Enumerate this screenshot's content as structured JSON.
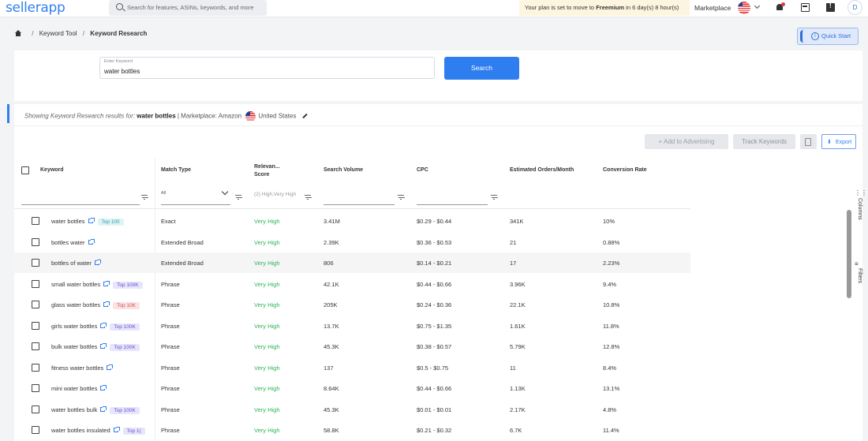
{
  "topbar": {
    "logo": "sellerapp",
    "search_placeholder": "Search for features, ASINs, keywords, and more",
    "plan_notice_prefix": "Your plan is set to move to ",
    "plan_notice_bold": "Freemium",
    "plan_notice_suffix": " in 6 day(s) 8 hour(s)",
    "marketplace_label": "Marketplace",
    "avatar_initial": "D"
  },
  "breadcrumb": {
    "items": [
      "Keyword Tool",
      "Keyword Research"
    ]
  },
  "quickstart_label": "Quick Start",
  "keyword_input": {
    "label": "Enter Keyword",
    "value": "water bottles"
  },
  "search_button": "Search",
  "results_header": {
    "prefix": "Showing Keyword Research results for:",
    "keyword": "water bottles",
    "marketplace": "| Marketplace: Amazon",
    "country": "United States"
  },
  "actions": {
    "add_to_advertising": "+ Add to Advertising",
    "track_keywords": "Track Keywords",
    "export": "Export"
  },
  "table": {
    "columns": [
      "Keyword",
      "Match Type",
      "Relevan... Score",
      "Search Volume",
      "CPC",
      "Estimated Orders/Month",
      "Conversion Rate"
    ],
    "filters": {
      "match_type_selected": "All",
      "relevance_placeholder": "(2) High,Very High"
    },
    "rows": [
      {
        "keyword": "water bottles",
        "tag": "Top 100",
        "tag_style": "teal",
        "match": "Exact",
        "relevance": "Very High",
        "volume": "3.41M",
        "cpc": "$0.29 - $0.44",
        "orders": "341K",
        "conversion": "10%"
      },
      {
        "keyword": "bottles water",
        "tag": "",
        "tag_style": "",
        "match": "Extended Broad",
        "relevance": "Very High",
        "volume": "2.39K",
        "cpc": "$0.36 - $0.53",
        "orders": "21",
        "conversion": "0.88%"
      },
      {
        "keyword": "bottles of water",
        "tag": "",
        "tag_style": "",
        "match": "Extended Broad",
        "relevance": "Very High",
        "volume": "806",
        "cpc": "$0.14 - $0.21",
        "orders": "17",
        "conversion": "2.23%"
      },
      {
        "keyword": "small water bottles",
        "tag": "Top 100K",
        "tag_style": "purple",
        "match": "Phrase",
        "relevance": "Very High",
        "volume": "42.1K",
        "cpc": "$0.44 - $0.66",
        "orders": "3.96K",
        "conversion": "9.4%"
      },
      {
        "keyword": "glass water bottles",
        "tag": "Top 10K",
        "tag_style": "red",
        "match": "Phrase",
        "relevance": "Very High",
        "volume": "205K",
        "cpc": "$0.24 - $0.36",
        "orders": "22.1K",
        "conversion": "10.8%"
      },
      {
        "keyword": "girls water bottles",
        "tag": "Top 100K",
        "tag_style": "purple",
        "match": "Phrase",
        "relevance": "Very High",
        "volume": "13.7K",
        "cpc": "$0.75 - $1.35",
        "orders": "1.61K",
        "conversion": "11.8%"
      },
      {
        "keyword": "bulk water bottles",
        "tag": "Top 100K",
        "tag_style": "purple",
        "match": "Phrase",
        "relevance": "Very High",
        "volume": "45.3K",
        "cpc": "$0.38 - $0.57",
        "orders": "5.79K",
        "conversion": "12.8%"
      },
      {
        "keyword": "fitness water bottles",
        "tag": "",
        "tag_style": "",
        "match": "Phrase",
        "relevance": "Very High",
        "volume": "137",
        "cpc": "$0.5 - $0.75",
        "orders": "11",
        "conversion": "8.4%"
      },
      {
        "keyword": "mini water bottles",
        "tag": "",
        "tag_style": "",
        "match": "Phrase",
        "relevance": "Very High",
        "volume": "8.64K",
        "cpc": "$0.44 - $0.66",
        "orders": "1.13K",
        "conversion": "13.1%"
      },
      {
        "keyword": "water bottles bulk",
        "tag": "Top 100K",
        "tag_style": "purple",
        "match": "Phrase",
        "relevance": "Very High",
        "volume": "45.3K",
        "cpc": "$0.01 - $0.01",
        "orders": "2.17K",
        "conversion": "4.8%"
      },
      {
        "keyword": "water bottles insulated",
        "tag": "Top 1(",
        "tag_style": "purple",
        "match": "Phrase",
        "relevance": "Very High",
        "volume": "58.8K",
        "cpc": "$0.21 - $0.32",
        "orders": "6.7K",
        "conversion": "11.4%"
      }
    ]
  },
  "rail": {
    "columns_label": "Columns",
    "filters_label": "Filters"
  }
}
